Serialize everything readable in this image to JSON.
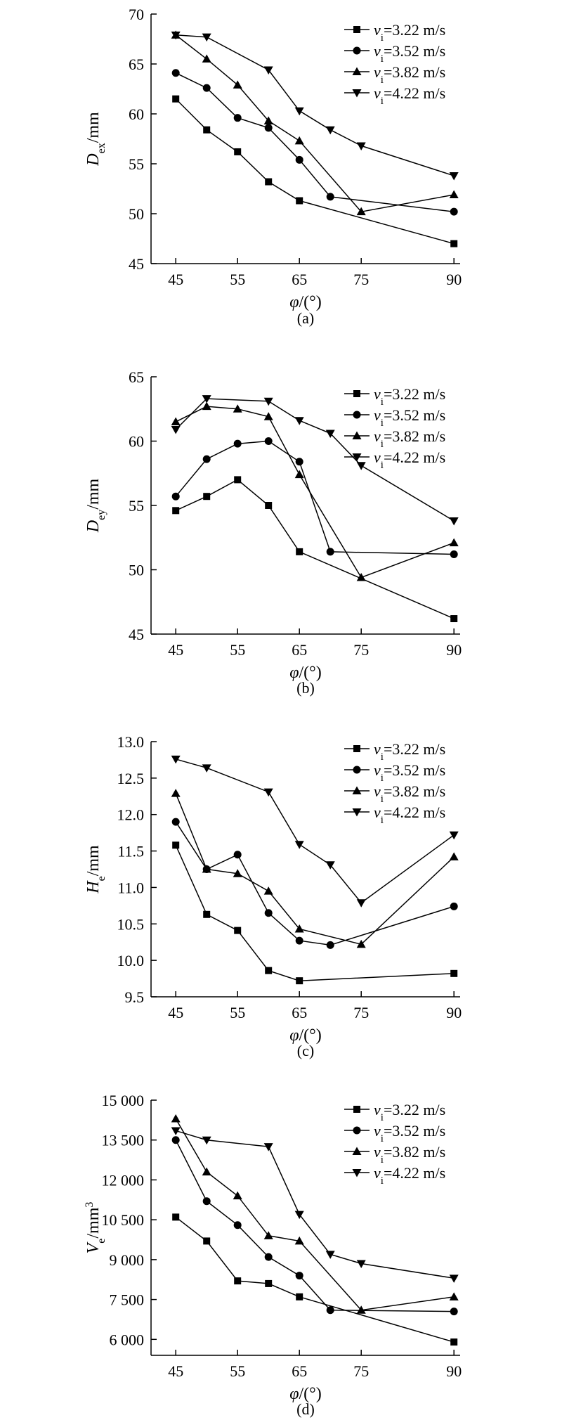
{
  "chart_data": [
    {
      "type": "line",
      "panel_label": "(a)",
      "xlabel": {
        "symbol": "φ",
        "unit": "/(°)"
      },
      "ylabel": {
        "symbol": "D",
        "sub": "ex",
        "unit": "/mm"
      },
      "xlim": [
        41,
        91
      ],
      "ylim": [
        45,
        70
      ],
      "xticks": [
        45,
        55,
        65,
        75,
        90
      ],
      "xtick_labels": [
        "45",
        "55",
        "65",
        "75",
        "90"
      ],
      "yticks": [
        45,
        50,
        55,
        60,
        65,
        70
      ],
      "ytick_labels": [
        "45",
        "50",
        "55",
        "60",
        "65",
        "70"
      ],
      "legend_position": "top-right",
      "series": [
        {
          "name": "vi=3.22 m/s",
          "v_sub": "i",
          "value_text": "=3.22 m/s",
          "marker": "square",
          "x": [
            45,
            50,
            55,
            60,
            65,
            90
          ],
          "y": [
            61.5,
            58.4,
            56.2,
            53.2,
            51.3,
            47.0
          ]
        },
        {
          "name": "vi=3.52 m/s",
          "v_sub": "i",
          "value_text": "=3.52 m/s",
          "marker": "circle",
          "x": [
            45,
            50,
            55,
            60,
            65,
            70,
            90
          ],
          "y": [
            64.1,
            62.6,
            59.6,
            58.6,
            55.4,
            51.7,
            50.2
          ]
        },
        {
          "name": "vi=3.82 m/s",
          "v_sub": "i",
          "value_text": "=3.82 m/s",
          "marker": "triangle-up",
          "x": [
            45,
            50,
            55,
            60,
            65,
            75,
            90
          ],
          "y": [
            67.9,
            65.5,
            62.9,
            59.3,
            57.3,
            50.2,
            51.9
          ]
        },
        {
          "name": "vi=4.22 m/s",
          "v_sub": "i",
          "value_text": "=4.22 m/s",
          "marker": "triangle-down",
          "x": [
            45,
            50,
            60,
            65,
            70,
            75,
            90
          ],
          "y": [
            67.9,
            67.7,
            64.4,
            60.3,
            58.4,
            56.8,
            53.8
          ]
        }
      ]
    },
    {
      "type": "line",
      "panel_label": "(b)",
      "xlabel": {
        "symbol": "φ",
        "unit": "/(°)"
      },
      "ylabel": {
        "symbol": "D",
        "sub": "ey",
        "unit": "/mm"
      },
      "xlim": [
        41,
        91
      ],
      "ylim": [
        45,
        65
      ],
      "xticks": [
        45,
        55,
        65,
        75,
        90
      ],
      "xtick_labels": [
        "45",
        "55",
        "65",
        "75",
        "90"
      ],
      "yticks": [
        45,
        50,
        55,
        60,
        65
      ],
      "ytick_labels": [
        "45",
        "50",
        "55",
        "60",
        "65"
      ],
      "legend_position": "top-right",
      "series": [
        {
          "name": "vi=3.22 m/s",
          "v_sub": "i",
          "value_text": "=3.22 m/s",
          "marker": "square",
          "x": [
            45,
            50,
            55,
            60,
            65,
            90
          ],
          "y": [
            54.6,
            55.7,
            57.0,
            55.0,
            51.4,
            46.2
          ]
        },
        {
          "name": "vi=3.52 m/s",
          "v_sub": "i",
          "value_text": "=3.52 m/s",
          "marker": "circle",
          "x": [
            45,
            50,
            55,
            60,
            65,
            70,
            90
          ],
          "y": [
            55.7,
            58.6,
            59.8,
            60.0,
            58.4,
            51.4,
            51.2
          ]
        },
        {
          "name": "vi=3.82 m/s",
          "v_sub": "i",
          "value_text": "=3.82 m/s",
          "marker": "triangle-up",
          "x": [
            45,
            50,
            55,
            60,
            65,
            75,
            90
          ],
          "y": [
            61.5,
            62.7,
            62.5,
            61.9,
            57.4,
            49.4,
            52.1
          ]
        },
        {
          "name": "vi=4.22 m/s",
          "v_sub": "i",
          "value_text": "=4.22 m/s",
          "marker": "triangle-down",
          "x": [
            45,
            50,
            60,
            65,
            70,
            75,
            90
          ],
          "y": [
            60.9,
            63.3,
            63.1,
            61.6,
            60.6,
            58.1,
            53.8
          ]
        }
      ]
    },
    {
      "type": "line",
      "panel_label": "(c)",
      "xlabel": {
        "symbol": "φ",
        "unit": "/(°)"
      },
      "ylabel": {
        "symbol": "H",
        "sub": "e",
        "unit": "/mm"
      },
      "xlim": [
        41,
        91
      ],
      "ylim": [
        9.5,
        13.0
      ],
      "xticks": [
        45,
        55,
        65,
        75,
        90
      ],
      "xtick_labels": [
        "45",
        "55",
        "65",
        "75",
        "90"
      ],
      "yticks": [
        9.5,
        10.0,
        10.5,
        11.0,
        11.5,
        12.0,
        12.5,
        13.0
      ],
      "ytick_labels": [
        "9.5",
        "10.0",
        "10.5",
        "11.0",
        "11.5",
        "12.0",
        "12.5",
        "13.0"
      ],
      "legend_position": "top-right",
      "series": [
        {
          "name": "vi=3.22 m/s",
          "v_sub": "i",
          "value_text": "=3.22 m/s",
          "marker": "square",
          "x": [
            45,
            50,
            55,
            60,
            65,
            90
          ],
          "y": [
            11.58,
            10.63,
            10.41,
            9.86,
            9.72,
            9.82
          ]
        },
        {
          "name": "vi=3.52 m/s",
          "v_sub": "i",
          "value_text": "=3.52 m/s",
          "marker": "circle",
          "x": [
            45,
            50,
            55,
            60,
            65,
            70,
            90
          ],
          "y": [
            11.9,
            11.25,
            11.45,
            10.65,
            10.27,
            10.21,
            10.74
          ]
        },
        {
          "name": "vi=3.82 m/s",
          "v_sub": "i",
          "value_text": "=3.82 m/s",
          "marker": "triangle-up",
          "x": [
            45,
            50,
            55,
            60,
            65,
            75,
            90
          ],
          "y": [
            12.29,
            11.25,
            11.19,
            10.95,
            10.43,
            10.22,
            11.42
          ]
        },
        {
          "name": "vi=4.22 m/s",
          "v_sub": "i",
          "value_text": "=4.22 m/s",
          "marker": "triangle-down",
          "x": [
            45,
            50,
            60,
            65,
            70,
            75,
            90
          ],
          "y": [
            12.76,
            12.64,
            12.31,
            11.59,
            11.31,
            10.79,
            11.72
          ]
        }
      ]
    },
    {
      "type": "line",
      "panel_label": "(d)",
      "xlabel": {
        "symbol": "φ",
        "unit": "/(°)"
      },
      "ylabel": {
        "symbol": "V",
        "sub": "e",
        "unit": "/mm",
        "sup": "3"
      },
      "xlim": [
        41,
        91
      ],
      "ylim": [
        5400,
        15000
      ],
      "xticks": [
        45,
        55,
        65,
        75,
        90
      ],
      "xtick_labels": [
        "45",
        "55",
        "65",
        "75",
        "90"
      ],
      "yticks": [
        6000,
        7500,
        9000,
        10500,
        12000,
        13500,
        15000
      ],
      "ytick_labels": [
        "6 000",
        "7 500",
        "9 000",
        "10 500",
        "12 000",
        "13 500",
        "15 000"
      ],
      "legend_position": "top-right",
      "series": [
        {
          "name": "vi=3.22 m/s",
          "v_sub": "i",
          "value_text": "=3.22 m/s",
          "marker": "square",
          "x": [
            45,
            50,
            55,
            60,
            65,
            90
          ],
          "y": [
            10600,
            9700,
            8200,
            8100,
            7600,
            5900
          ]
        },
        {
          "name": "vi=3.52 m/s",
          "v_sub": "i",
          "value_text": "=3.52 m/s",
          "marker": "circle",
          "x": [
            45,
            50,
            55,
            60,
            65,
            70,
            90
          ],
          "y": [
            13500,
            11200,
            10300,
            9100,
            8400,
            7100,
            7050
          ]
        },
        {
          "name": "vi=3.82 m/s",
          "v_sub": "i",
          "value_text": "=3.82 m/s",
          "marker": "triangle-up",
          "x": [
            45,
            50,
            55,
            60,
            65,
            75,
            90
          ],
          "y": [
            14300,
            12300,
            11400,
            9900,
            9700,
            7100,
            7600
          ]
        },
        {
          "name": "vi=4.22 m/s",
          "v_sub": "i",
          "value_text": "=4.22 m/s",
          "marker": "triangle-down",
          "x": [
            45,
            50,
            60,
            65,
            70,
            75,
            90
          ],
          "y": [
            13850,
            13500,
            13250,
            10700,
            9200,
            8850,
            8300
          ]
        }
      ]
    }
  ]
}
